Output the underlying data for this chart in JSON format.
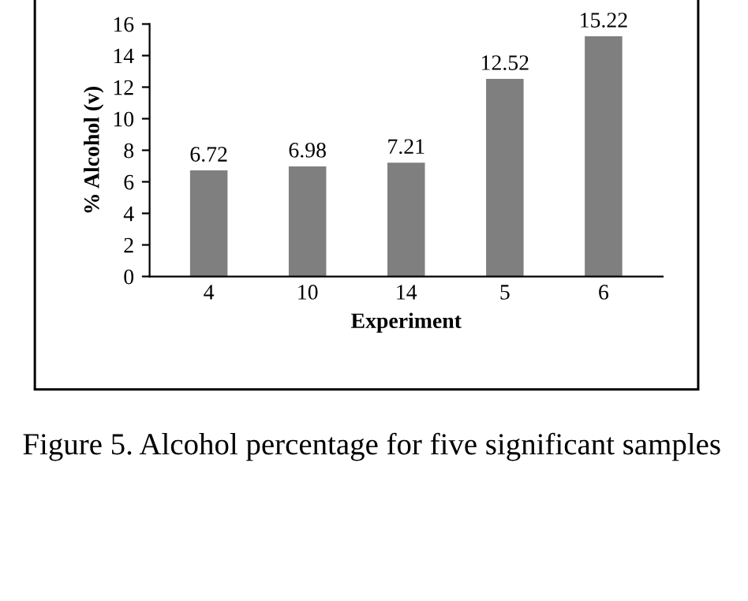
{
  "chart_data": {
    "type": "bar",
    "xlabel": "Experiment",
    "ylabel": "% Alcohol (v)",
    "categories": [
      "4",
      "10",
      "14",
      "5",
      "6"
    ],
    "series": [
      {
        "color": "#7f7f7f",
        "values": [
          6.72,
          6.98,
          7.21,
          12.52,
          15.22
        ]
      }
    ],
    "ylim": [
      0,
      16
    ],
    "yticks": [
      0,
      2,
      4,
      6,
      8,
      10,
      12,
      14,
      16
    ],
    "grid": false,
    "data_labels": true,
    "legend": false,
    "annotations": [
      "Figure 5. Alcohol percentage for five significant samples"
    ]
  }
}
